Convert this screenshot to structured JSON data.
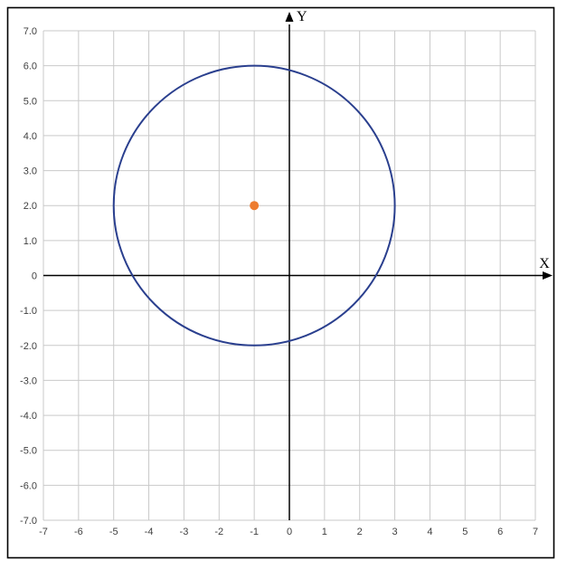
{
  "figure": {
    "background": "#ffffff",
    "border_color": "#000000"
  },
  "chart_data": {
    "type": "scatter",
    "title": "",
    "xlabel": "X",
    "ylabel": "Y",
    "xlim": [
      -7,
      7
    ],
    "ylim": [
      -7,
      7
    ],
    "grid": true,
    "grid_color": "#c9c9c9",
    "axis_color": "#000000",
    "tick_label_color": "#3f3f3f",
    "legend_position": "none",
    "x_ticks": [
      -7,
      -6,
      -5,
      -4,
      -3,
      -2,
      -1,
      0,
      1,
      2,
      3,
      4,
      5,
      6,
      7
    ],
    "x_tick_labels": [
      "-7",
      "-6",
      "-5",
      "-4",
      "-3",
      "-2",
      "-1",
      "0",
      "1",
      "2",
      "3",
      "4",
      "5",
      "6",
      "7"
    ],
    "y_ticks": [
      7,
      6,
      5,
      4,
      3,
      2,
      1,
      0,
      -1,
      -2,
      -3,
      -4,
      -5,
      -6,
      -7
    ],
    "y_tick_labels": [
      "7.0",
      "6.0",
      "5.0",
      "4.0",
      "3.0",
      "2.0",
      "1.0",
      "0",
      "-1.0",
      "-2.0",
      "-3.0",
      "-4.0",
      "-5.0",
      "-6.0",
      "-7.0"
    ],
    "series": [
      {
        "name": "circle",
        "kind": "circle",
        "center": [
          -1,
          2
        ],
        "radius": 4,
        "stroke": "#2a3f8e",
        "stroke_width": 2,
        "fill": "none"
      },
      {
        "name": "center-point",
        "kind": "point",
        "points": [
          [
            -1,
            2
          ]
        ],
        "fill": "#ed7d31",
        "size": 5
      }
    ]
  }
}
